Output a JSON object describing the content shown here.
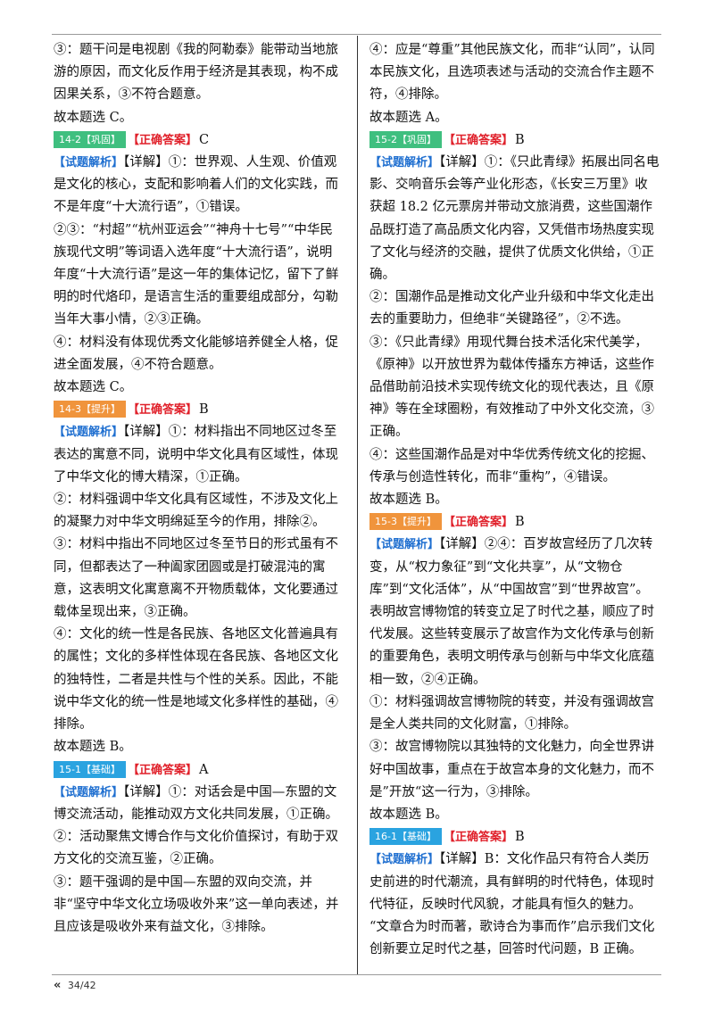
{
  "colors": {
    "consolidate": "#3fbf7f",
    "improve": "#f0943c",
    "basic": "#2aa3e0",
    "answer": "#e0202a",
    "analysis": "#1f6fd0"
  },
  "left": [
    {
      "type": "text",
      "text": "③：题干问是电视剧《我的阿勒泰》能带动当地旅游的原因，而文化反作用于经济是其表现，构不成因果关系，③不符合题意。"
    },
    {
      "type": "text",
      "text": "故本题选 C。"
    },
    {
      "type": "head",
      "tag": "14-2【巩固】",
      "kind": "consolidate",
      "ans_label": "【正确答案】",
      "ans": "C"
    },
    {
      "type": "analysis",
      "label": "【试题解析】",
      "text": "【详解】①：世界观、人生观、价值观是文化的核心，支配和影响着人们的文化实践，而不是年度“十大流行语”，①错误。"
    },
    {
      "type": "text",
      "text": "②③：“村超”“杭州亚运会”“神舟十七号”“中华民族现代文明”等词语入选年度“十大流行语”，说明年度“十大流行语”是这一年的集体记忆，留下了鲜明的时代烙印，是语言生活的重要组成部分，勾勒当年大事小情，②③正确。"
    },
    {
      "type": "text",
      "text": "④：材料没有体现优秀文化能够培养健全人格，促进全面发展，④不符合题意。"
    },
    {
      "type": "text",
      "text": "故本题选 C。"
    },
    {
      "type": "head",
      "tag": "14-3【提升】",
      "kind": "improve",
      "ans_label": "【正确答案】",
      "ans": "B"
    },
    {
      "type": "analysis",
      "label": "【试题解析】",
      "text": "【详解】①：材料指出不同地区过冬至表达的寓意不同，说明中华文化具有区域性，体现了中华文化的博大精深，①正确。"
    },
    {
      "type": "text",
      "text": "②：材料强调中华文化具有区域性，不涉及文化上的凝聚力对中华文明绵延至今的作用，排除②。"
    },
    {
      "type": "text",
      "text": "③：材料中指出不同地区过冬至节日的形式虽有不同，但都表达了一种阖家团圆或是打破混沌的寓意，这表明文化寓意离不开物质载体，文化要通过载体呈现出来，③正确。"
    },
    {
      "type": "text",
      "text": "④：文化的统一性是各民族、各地区文化普遍具有的属性；文化的多样性体现在各民族、各地区文化的独特性，二者是共性与个性的关系。因此，不能说中华文化的统一性是地域文化多样性的基础，④排除。"
    },
    {
      "type": "text",
      "text": "故本题选 B。"
    },
    {
      "type": "head",
      "tag": "15-1【基础】",
      "kind": "basic",
      "ans_label": "【正确答案】",
      "ans": "A"
    },
    {
      "type": "analysis",
      "label": "【试题解析】",
      "text": "【详解】①：对话会是中国—东盟的文博交流活动，能推动双方文化共同发展，①正确。"
    },
    {
      "type": "text",
      "text": "②：活动聚焦文博合作与文化价值探讨，有助于双方文化的交流互鉴，②正确。"
    },
    {
      "type": "text",
      "text": "③：题干强调的是中国—东盟的双向交流，并非“坚守中华文化立场吸收外来”这一单向表述，并且应该是吸收外来有益文化，③排除。"
    }
  ],
  "right": [
    {
      "type": "text",
      "text": "④：应是“尊重”其他民族文化，而非“认同”，认同本民族文化，且选项表述与活动的交流合作主题不符，④排除。"
    },
    {
      "type": "text",
      "text": "故本题选 A。"
    },
    {
      "type": "head",
      "tag": "15-2【巩固】",
      "kind": "consolidate",
      "ans_label": "【正确答案】",
      "ans": "B"
    },
    {
      "type": "analysis",
      "label": "【试题解析】",
      "text": "【详解】①：《只此青绿》拓展出同名电影、交响音乐会等产业化形态，《长安三万里》收获超 18.2 亿元票房并带动文旅消费，这些国潮作品既打造了高品质文化内容，又凭借市场热度实现了文化与经济的交融，提供了优质文化供给，①正确。"
    },
    {
      "type": "text",
      "text": "②：国潮作品是推动文化产业升级和中华文化走出去的重要助力，但绝非“关键路径”，②不选。"
    },
    {
      "type": "text",
      "text": "③：《只此青绿》用现代舞台技术活化宋代美学，《原神》以开放世界为载体传播东方神话，这些作品借助前沿技术实现传统文化的现代表达，且《原神》等在全球圈粉，有效推动了中外文化交流，③正确。"
    },
    {
      "type": "text",
      "text": "④：这些国潮作品是对中华优秀传统文化的挖掘、传承与创造性转化，而非“重构”，④错误。"
    },
    {
      "type": "text",
      "text": "故本题选 B。"
    },
    {
      "type": "head",
      "tag": "15-3【提升】",
      "kind": "improve",
      "ans_label": "【正确答案】",
      "ans": "B"
    },
    {
      "type": "analysis",
      "label": "【试题解析】",
      "text": "【详解】②④：百岁故宫经历了几次转变，从“权力象征”到“文化共享”，从“文物仓库”到“文化活体”，从“中国故宫”到“世界故宫”。表明故宫博物馆的转变立足了时代之基，顺应了时代发展。这些转变展示了故宫作为文化传承与创新的重要角色，表明文明传承与创新与中华文化底蕴相一致，②④正确。"
    },
    {
      "type": "text",
      "text": "①：材料强调故宫博物院的转变，并没有强调故宫是全人类共同的文化财富，①排除。"
    },
    {
      "type": "text",
      "text": "③：故宫博物院以其独特的文化魅力，向全世界讲好中国故事，重点在于故宫本身的文化魅力，而不是”开放“这一行为，③排除。"
    },
    {
      "type": "text",
      "text": "故本题选 B。"
    },
    {
      "type": "head",
      "tag": "16-1【基础】",
      "kind": "basic",
      "ans_label": "【正确答案】",
      "ans": "B"
    },
    {
      "type": "analysis",
      "label": "【试题解析】",
      "text": "【详解】B：文化作品只有符合人类历史前进的时代潮流，具有鲜明的时代特色，体现时代特征，反映时代风貌，才能具有恒久的魅力。 “文章合为时而著，歌诗合为事而作”启示我们文化创新要立足时代之基，回答时代问题，B 正确。"
    }
  ],
  "footer": {
    "chevron": "«",
    "page": "34/42"
  }
}
